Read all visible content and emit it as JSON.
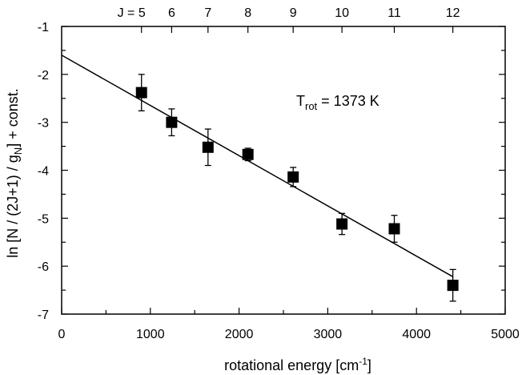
{
  "chart_data": {
    "type": "scatter",
    "xlabel": "rotational  energy  [cm",
    "xlabel_sup": "-1",
    "xlabel_end": "]",
    "ylabel": "ln [N / (2J+1) / g",
    "ylabel_sub": "N",
    "ylabel_end": "] + const.",
    "xlim": [
      0,
      5000
    ],
    "ylim": [
      -7,
      -1
    ],
    "x_ticks": [
      0,
      1000,
      2000,
      3000,
      4000,
      5000
    ],
    "y_ticks": [
      -1,
      -2,
      -3,
      -4,
      -5,
      -6,
      -7
    ],
    "grid": false,
    "top_axis": {
      "prefix": "J = ",
      "labels": [
        "5",
        "6",
        "7",
        "8",
        "9",
        "10",
        "11",
        "12"
      ],
      "positions": [
        900,
        1240,
        1650,
        2100,
        2610,
        3160,
        3750,
        4410
      ]
    },
    "series": [
      {
        "marker": "square",
        "color": "#000000",
        "x": [
          900,
          1240,
          1650,
          2100,
          2610,
          3160,
          3750,
          4410
        ],
        "y": [
          -2.38,
          -3.0,
          -3.52,
          -3.67,
          -4.14,
          -5.12,
          -5.22,
          -6.4
        ],
        "yerr": [
          0.38,
          0.28,
          0.38,
          0.13,
          0.2,
          0.22,
          0.28,
          0.33
        ]
      }
    ],
    "fit_line": {
      "x": [
        0,
        4410
      ],
      "y": [
        -1.6,
        -6.22
      ]
    },
    "annotation": {
      "main": "T",
      "sub": "rot",
      "rest": " = 1373 K",
      "pos": [
        3300,
        -2.6
      ]
    }
  }
}
